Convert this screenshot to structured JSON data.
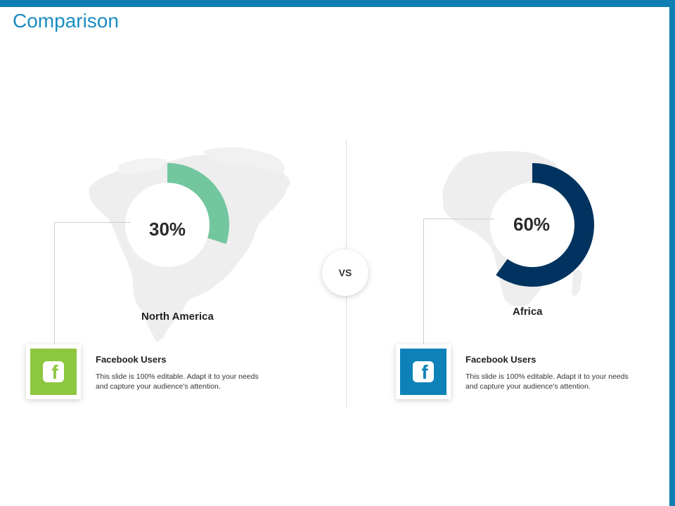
{
  "slide": {
    "title": "Comparison",
    "vs_label": "VS"
  },
  "colors": {
    "accent": "#0e7fb0",
    "title": "#1a8cc0",
    "left_donut": "#72c79f",
    "right_donut": "#00335f",
    "left_icon_bg": "#8dc63f",
    "right_icon_bg": "#0e82b8"
  },
  "left": {
    "percent_label": "30%",
    "percent_value": 30,
    "region": "North America",
    "card_title": "Facebook Users",
    "card_desc": "This slide is 100% editable. Adapt it to your needs and capture your audience's attention.",
    "icon": "facebook-icon"
  },
  "right": {
    "percent_label": "60%",
    "percent_value": 60,
    "region": "Africa",
    "card_title": "Facebook Users",
    "card_desc": "This slide is 100% editable. Adapt it to your needs and capture your audience's attention.",
    "icon": "facebook-icon"
  }
}
